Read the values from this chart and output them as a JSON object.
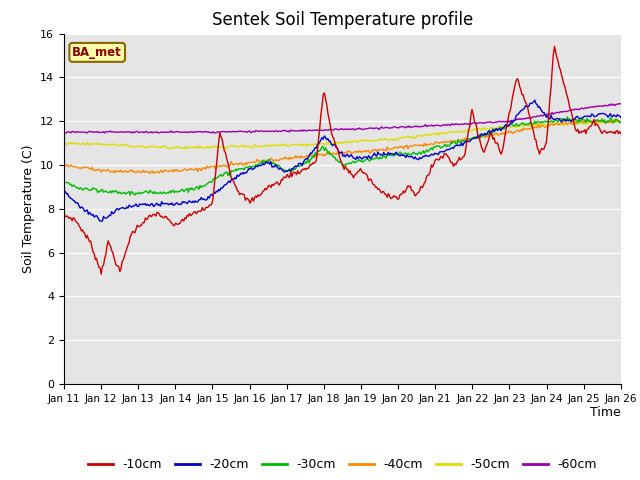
{
  "title": "Sentek Soil Temperature profile",
  "xlabel": "Time",
  "ylabel": "Soil Temperature (C)",
  "ylim": [
    0,
    16
  ],
  "yticks": [
    0,
    2,
    4,
    6,
    8,
    10,
    12,
    14,
    16
  ],
  "annotation": "BA_met",
  "bg_color": "#e5e5e5",
  "series_colors": {
    "-10cm": "#cc0000",
    "-20cm": "#0000cc",
    "-30cm": "#00bb00",
    "-40cm": "#ff8800",
    "-50cm": "#dddd00",
    "-60cm": "#9900aa"
  },
  "num_points": 480,
  "x_start": 0,
  "x_end": 15,
  "xtick_positions": [
    0,
    1,
    2,
    3,
    4,
    5,
    6,
    7,
    8,
    9,
    10,
    11,
    12,
    13,
    14,
    15
  ],
  "xtick_labels": [
    "Jan 11",
    "Jan 12",
    "Jan 13",
    "Jan 14",
    "Jan 15",
    "Jan 16",
    "Jan 17",
    "Jan 18",
    "Jan 19",
    "Jan 20",
    "Jan 21",
    "Jan 22",
    "Jan 23",
    "Jan 24",
    "Jan 25",
    "Jan 26"
  ]
}
